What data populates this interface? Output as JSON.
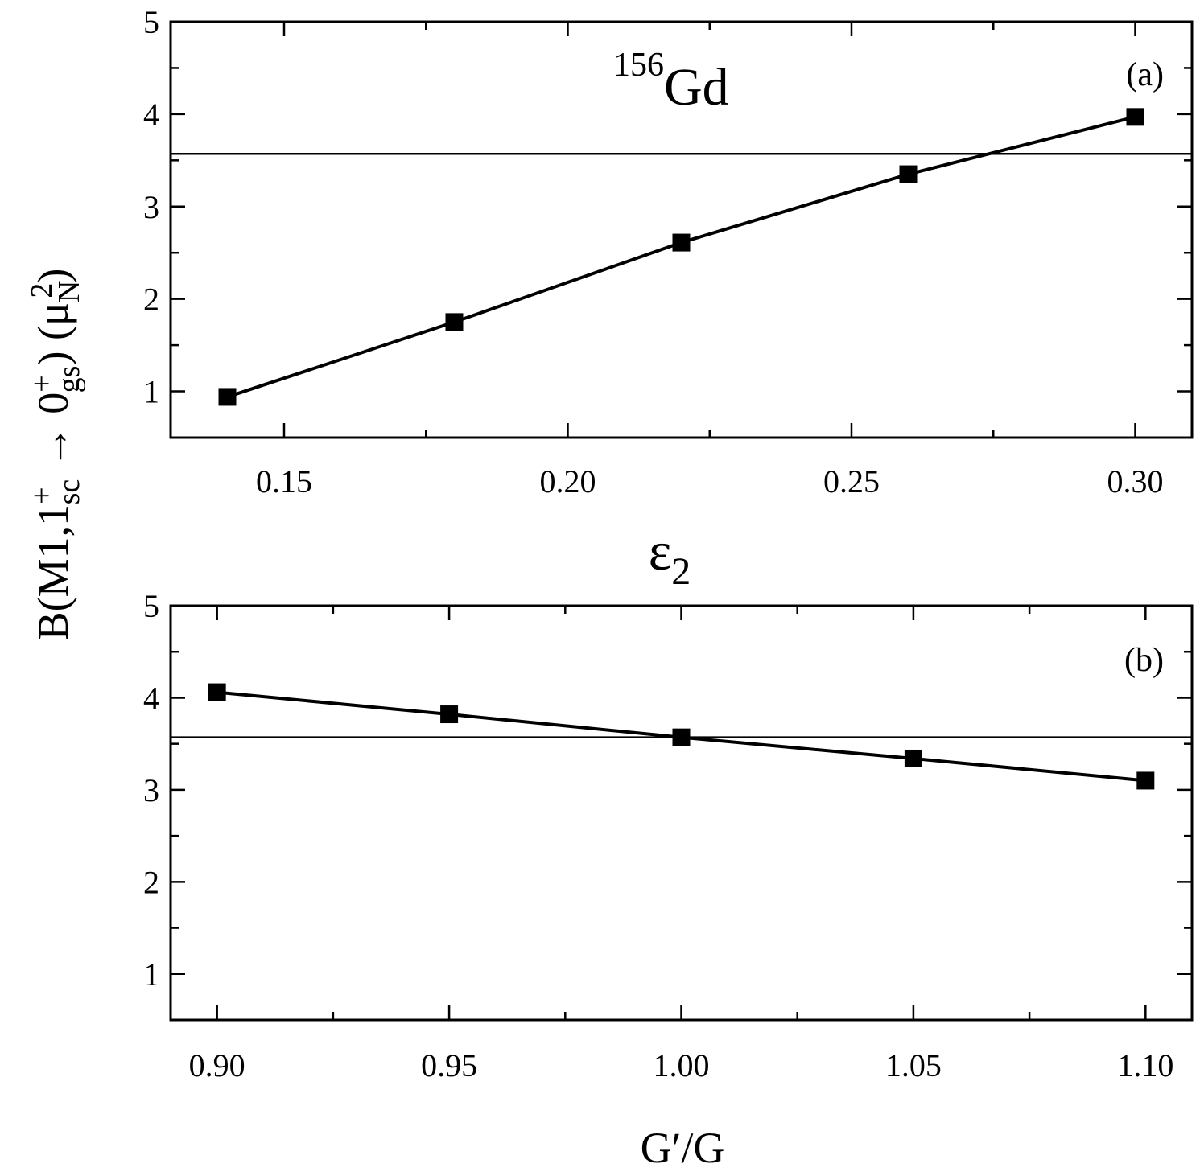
{
  "figure": {
    "ylabel_parts": {
      "open": "B(M1,1",
      "sup1": "+",
      "sub1": "sc",
      "arrow": " → 0",
      "sup2": "+",
      "sub2": "gs",
      "mid": ") (μ",
      "sub3": "N",
      "sup3": "2",
      "close": ")"
    }
  },
  "chart_data": [
    {
      "type": "line",
      "panel_tag": "(a)",
      "annotation": {
        "mass_number": "156",
        "element": "Gd"
      },
      "xlabel_parts": {
        "base": "ε",
        "sub": "2"
      },
      "xlim": [
        0.13,
        0.31
      ],
      "ylim": [
        0.5,
        5.0
      ],
      "x_ticks": [
        {
          "value": 0.15,
          "label": "0.15"
        },
        {
          "value": 0.2,
          "label": "0.20"
        },
        {
          "value": 0.25,
          "label": "0.25"
        },
        {
          "value": 0.3,
          "label": "0.30"
        }
      ],
      "x_minor_step": 0.025,
      "y_ticks": [
        {
          "value": 1,
          "label": "1"
        },
        {
          "value": 2,
          "label": "2"
        },
        {
          "value": 3,
          "label": "3"
        },
        {
          "value": 4,
          "label": "4"
        },
        {
          "value": 5,
          "label": "5"
        }
      ],
      "y_minor_step": 0.5,
      "reference_line_y": 3.57,
      "series": [
        {
          "x": [
            0.14,
            0.18,
            0.22,
            0.26,
            0.3
          ],
          "y": [
            0.94,
            1.75,
            2.61,
            3.35,
            3.97
          ],
          "marker": "square",
          "color": "#000000"
        }
      ]
    },
    {
      "type": "line",
      "panel_tag": "(b)",
      "xlabel_parts": {
        "base": "G′/G"
      },
      "xlim": [
        0.89,
        1.11
      ],
      "ylim": [
        0.5,
        5.0
      ],
      "x_ticks": [
        {
          "value": 0.9,
          "label": "0.90"
        },
        {
          "value": 0.95,
          "label": "0.95"
        },
        {
          "value": 1.0,
          "label": "1.00"
        },
        {
          "value": 1.05,
          "label": "1.05"
        },
        {
          "value": 1.1,
          "label": "1.10"
        }
      ],
      "x_minor_step": 0.025,
      "y_ticks": [
        {
          "value": 1,
          "label": "1"
        },
        {
          "value": 2,
          "label": "2"
        },
        {
          "value": 3,
          "label": "3"
        },
        {
          "value": 4,
          "label": "4"
        },
        {
          "value": 5,
          "label": "5"
        }
      ],
      "y_minor_step": 0.5,
      "reference_line_y": 3.57,
      "series": [
        {
          "x": [
            0.9,
            0.95,
            1.0,
            1.05,
            1.1
          ],
          "y": [
            4.06,
            3.82,
            3.57,
            3.34,
            3.1
          ],
          "marker": "square",
          "color": "#000000"
        }
      ]
    }
  ]
}
